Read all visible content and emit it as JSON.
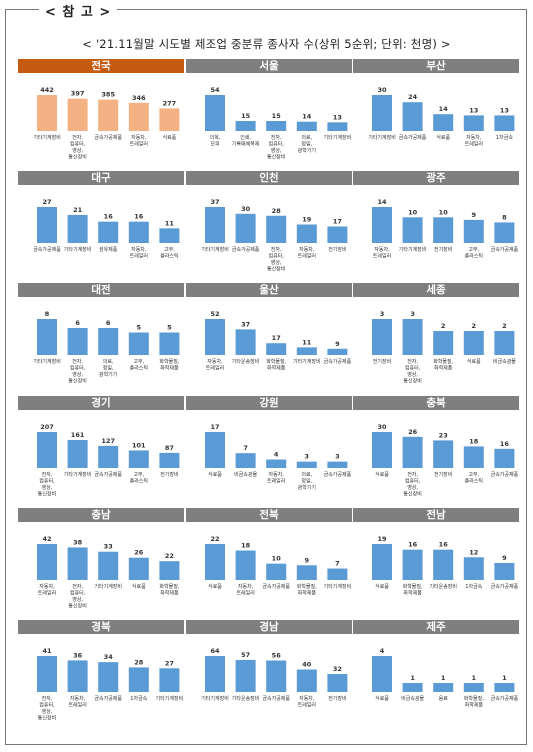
{
  "reference_label": "< 참 고 >",
  "title": "< '21.11월말 시도별 제조업 중분류 종사자 수(상위 5순위; 단위: 천명) >",
  "colors": {
    "header_highlight": "#c55a11",
    "header_default": "#7f7f7f",
    "bar_highlight": "#f4b183",
    "bar_default": "#5b9bd5"
  },
  "chart_data": [
    {
      "type": "bar",
      "title": "전국",
      "highlight": true,
      "categories": [
        [
          "기타기계장비"
        ],
        [
          "전자,",
          "컴퓨터,",
          "영상,",
          "통신장비"
        ],
        [
          "금속가공제품"
        ],
        [
          "자동차,",
          "트레일러"
        ],
        [
          "식료품"
        ]
      ],
      "values": [
        442,
        397,
        385,
        346,
        277
      ]
    },
    {
      "type": "bar",
      "title": "서울",
      "categories": [
        [
          "의복,",
          "모피"
        ],
        [
          "인쇄,",
          "기록매체복제"
        ],
        [
          "전자,",
          "컴퓨터,",
          "영상,",
          "통신장비"
        ],
        [
          "의료,",
          "정밀,",
          "광학기기"
        ],
        [
          "기타기계장비"
        ]
      ],
      "values": [
        54,
        15,
        15,
        14,
        13
      ]
    },
    {
      "type": "bar",
      "title": "부산",
      "categories": [
        [
          "기타기계장비"
        ],
        [
          "금속가공제품"
        ],
        [
          "식료품"
        ],
        [
          "자동차,",
          "트레일러"
        ],
        [
          "1차금속"
        ]
      ],
      "values": [
        30,
        24,
        14,
        13,
        13
      ]
    },
    {
      "type": "bar",
      "title": "대구",
      "categories": [
        [
          "금속가공제품"
        ],
        [
          "기타기계장비"
        ],
        [
          "섬유제품"
        ],
        [
          "자동차,",
          "트레일러"
        ],
        [
          "고무,",
          "플라스틱"
        ]
      ],
      "values": [
        27,
        21,
        16,
        16,
        11
      ]
    },
    {
      "type": "bar",
      "title": "인천",
      "categories": [
        [
          "기타기계장비"
        ],
        [
          "금속가공제품"
        ],
        [
          "전자,",
          "컴퓨터,",
          "영상,",
          "통신장비"
        ],
        [
          "자동차,",
          "트레일러"
        ],
        [
          "전기장비"
        ]
      ],
      "values": [
        37,
        30,
        28,
        19,
        17
      ]
    },
    {
      "type": "bar",
      "title": "광주",
      "categories": [
        [
          "자동차,",
          "트레일러"
        ],
        [
          "기타기계장비"
        ],
        [
          "전기장비"
        ],
        [
          "고무,",
          "플라스틱"
        ],
        [
          "금속가공제품"
        ]
      ],
      "values": [
        14,
        10,
        10,
        9,
        8
      ]
    },
    {
      "type": "bar",
      "title": "대전",
      "categories": [
        [
          "기타기계장비"
        ],
        [
          "전자,",
          "컴퓨터,",
          "영상,",
          "통신장비"
        ],
        [
          "의료,",
          "정밀,",
          "광학기기"
        ],
        [
          "고무,",
          "플라스틱"
        ],
        [
          "화학물질,",
          "화학제품"
        ]
      ],
      "values": [
        8,
        6,
        6,
        5,
        5
      ]
    },
    {
      "type": "bar",
      "title": "울산",
      "categories": [
        [
          "자동차,",
          "트레일러"
        ],
        [
          "기타운송장비"
        ],
        [
          "화학물질,",
          "화학제품"
        ],
        [
          "기타기계장비"
        ],
        [
          "금속가공제품"
        ]
      ],
      "values": [
        52,
        37,
        17,
        11,
        9
      ]
    },
    {
      "type": "bar",
      "title": "세종",
      "categories": [
        [
          "전기장비"
        ],
        [
          "전자,",
          "컴퓨터,",
          "영상,",
          "통신장비"
        ],
        [
          "화학물질,",
          "화학제품"
        ],
        [
          "식료품"
        ],
        [
          "비금속광물"
        ]
      ],
      "values": [
        3,
        3,
        2,
        2,
        2
      ]
    },
    {
      "type": "bar",
      "title": "경기",
      "categories": [
        [
          "전자,",
          "컴퓨터,",
          "영상,",
          "통신장비"
        ],
        [
          "기타기계장비"
        ],
        [
          "금속가공제품"
        ],
        [
          "고무,",
          "플라스틱"
        ],
        [
          "전기장비"
        ]
      ],
      "values": [
        207,
        161,
        127,
        101,
        87
      ]
    },
    {
      "type": "bar",
      "title": "강원",
      "categories": [
        [
          "식료품"
        ],
        [
          "비금속광물"
        ],
        [
          "자동차,",
          "트레일러"
        ],
        [
          "의료,",
          "정밀,",
          "광학기기"
        ],
        [
          "금속가공제품"
        ]
      ],
      "values": [
        17,
        7,
        4,
        3,
        3
      ]
    },
    {
      "type": "bar",
      "title": "충북",
      "categories": [
        [
          "식료품"
        ],
        [
          "전자,",
          "컴퓨터,",
          "영상,",
          "통신장비"
        ],
        [
          "전기장비"
        ],
        [
          "고무,",
          "플라스틱"
        ],
        [
          "금속가공제품"
        ]
      ],
      "values": [
        30,
        26,
        23,
        18,
        16
      ]
    },
    {
      "type": "bar",
      "title": "충남",
      "categories": [
        [
          "자동차,",
          "트레일러"
        ],
        [
          "전자,",
          "컴퓨터,",
          "영상,",
          "통신장비"
        ],
        [
          "기타기계장비"
        ],
        [
          "식료품"
        ],
        [
          "화학물질,",
          "화학제품"
        ]
      ],
      "values": [
        42,
        38,
        33,
        26,
        22
      ]
    },
    {
      "type": "bar",
      "title": "전북",
      "categories": [
        [
          "식료품"
        ],
        [
          "자동차,",
          "트레일러"
        ],
        [
          "금속가공제품"
        ],
        [
          "화학물질,",
          "화학제품"
        ],
        [
          "기타기계장비"
        ]
      ],
      "values": [
        22,
        18,
        10,
        9,
        7
      ]
    },
    {
      "type": "bar",
      "title": "전남",
      "categories": [
        [
          "식료품"
        ],
        [
          "화학물질,",
          "화학제품"
        ],
        [
          "기타운송장비"
        ],
        [
          "1차금속"
        ],
        [
          "금속가공제품"
        ]
      ],
      "values": [
        19,
        16,
        16,
        12,
        9
      ]
    },
    {
      "type": "bar",
      "title": "경북",
      "categories": [
        [
          "전자,",
          "컴퓨터,",
          "영상,",
          "통신장비"
        ],
        [
          "자동차,",
          "트레일러"
        ],
        [
          "금속가공제품"
        ],
        [
          "1차금속"
        ],
        [
          "기타기계장비"
        ]
      ],
      "values": [
        41,
        36,
        34,
        28,
        27
      ]
    },
    {
      "type": "bar",
      "title": "경남",
      "categories": [
        [
          "기타기계장비"
        ],
        [
          "기타운송장비"
        ],
        [
          "금속가공제품"
        ],
        [
          "자동차,",
          "트레일러"
        ],
        [
          "전기장비"
        ]
      ],
      "values": [
        64,
        57,
        56,
        40,
        32
      ]
    },
    {
      "type": "bar",
      "title": "제주",
      "categories": [
        [
          "식료품"
        ],
        [
          "비금속광물"
        ],
        [
          "음료"
        ],
        [
          "화학물질,",
          "화학제품"
        ],
        [
          "금속가공제품"
        ]
      ],
      "values": [
        4,
        1,
        1,
        1,
        1
      ]
    }
  ]
}
